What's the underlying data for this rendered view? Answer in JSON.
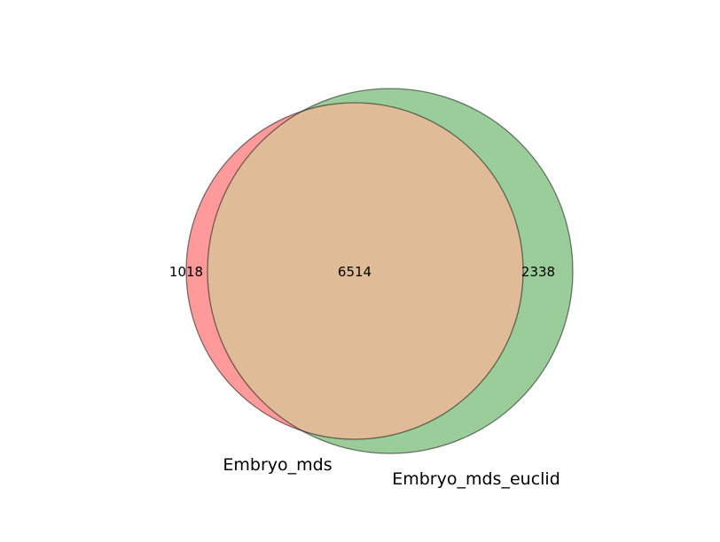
{
  "diagram": {
    "type": "venn2",
    "sets": [
      {
        "name": "Embryo_mds",
        "only_count": "1018",
        "color": "#ff9a9a"
      },
      {
        "name": "Embryo_mds_euclid",
        "only_count": "2338",
        "color": "#9acd9a"
      }
    ],
    "intersection_count": "6514",
    "intersection_color": "#e0bb98",
    "edge_color": "#000000"
  }
}
